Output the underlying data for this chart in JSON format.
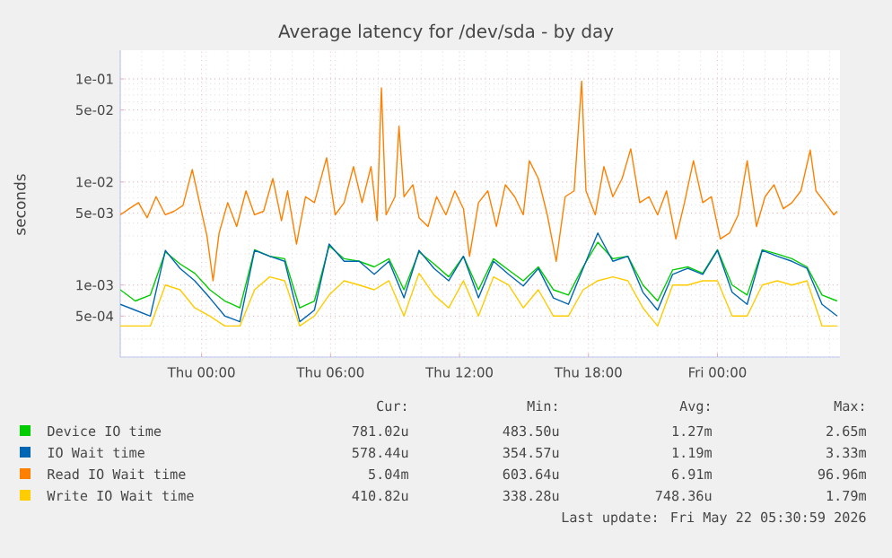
{
  "chart_data": {
    "type": "line",
    "title": "Average latency for /dev/sda - by day",
    "ylabel": "seconds",
    "log": "y",
    "grid": true,
    "legend": "bottom",
    "xlim": [
      "2026-05-20T20:13",
      "2026-05-22T05:42"
    ],
    "ylim": [
      0.0002,
      0.19
    ],
    "xticks": [
      {
        "value": "2026-05-21T00:00",
        "label": "Thu 00:00"
      },
      {
        "value": "2026-05-21T06:00",
        "label": "Thu 06:00"
      },
      {
        "value": "2026-05-21T12:00",
        "label": "Thu 12:00"
      },
      {
        "value": "2026-05-21T18:00",
        "label": "Thu 18:00"
      },
      {
        "value": "2026-05-22T00:00",
        "label": "Fri 00:00"
      }
    ],
    "yticks": [
      {
        "value": 0.0005,
        "label": "5e-04"
      },
      {
        "value": 0.001,
        "label": "1e-03"
      },
      {
        "value": 0.005,
        "label": "5e-03"
      },
      {
        "value": 0.01,
        "label": "1e-02"
      },
      {
        "value": 0.05,
        "label": "5e-02"
      },
      {
        "value": 0.1,
        "label": "1e-01"
      }
    ],
    "x": [
      "2026-05-20T20:13",
      "2026-05-20T20:55",
      "2026-05-20T21:37",
      "2026-05-20T22:19",
      "2026-05-20T23:00",
      "2026-05-20T23:41",
      "2026-05-21T00:23",
      "2026-05-21T01:05",
      "2026-05-21T01:47",
      "2026-05-21T02:28",
      "2026-05-21T03:10",
      "2026-05-21T03:52",
      "2026-05-21T04:34",
      "2026-05-21T05:15",
      "2026-05-21T05:56",
      "2026-05-21T06:38",
      "2026-05-21T07:20",
      "2026-05-21T08:02",
      "2026-05-21T08:43",
      "2026-05-21T09:25",
      "2026-05-21T10:07",
      "2026-05-21T10:49",
      "2026-05-21T11:30",
      "2026-05-21T12:11",
      "2026-05-21T12:53",
      "2026-05-21T13:35",
      "2026-05-21T14:17",
      "2026-05-21T14:58",
      "2026-05-21T15:40",
      "2026-05-21T16:22",
      "2026-05-21T17:04",
      "2026-05-21T17:45",
      "2026-05-21T18:26",
      "2026-05-21T19:08",
      "2026-05-21T19:50",
      "2026-05-21T20:32",
      "2026-05-21T21:13",
      "2026-05-21T21:55",
      "2026-05-21T22:37",
      "2026-05-21T23:19",
      "2026-05-22T00:00",
      "2026-05-22T00:41",
      "2026-05-22T01:23",
      "2026-05-22T02:05",
      "2026-05-22T02:47",
      "2026-05-22T03:28",
      "2026-05-22T04:10",
      "2026-05-22T04:52",
      "2026-05-22T05:34"
    ],
    "series": [
      {
        "name": "Device IO time",
        "color": "#00cc00",
        "values": [
          0.0009,
          0.0007,
          0.0008,
          0.0021,
          0.0016,
          0.0013,
          0.0009,
          0.0007,
          0.0006,
          0.0022,
          0.0019,
          0.0018,
          0.0006,
          0.0007,
          0.0024,
          0.0018,
          0.0017,
          0.0015,
          0.0018,
          0.0009,
          0.0021,
          0.0016,
          0.0012,
          0.0019,
          0.0009,
          0.0018,
          0.0014,
          0.0011,
          0.0015,
          0.0009,
          0.0008,
          0.0015,
          0.0026,
          0.0018,
          0.0019,
          0.001,
          0.0007,
          0.0014,
          0.0015,
          0.0013,
          0.0022,
          0.001,
          0.0008,
          0.0022,
          0.002,
          0.0018,
          0.0015,
          0.0008,
          0.0007
        ]
      },
      {
        "name": "IO Wait time",
        "color": "#0066b3",
        "values": [
          0.00065,
          0.00057,
          0.0005,
          0.00217,
          0.00145,
          0.0011,
          0.00075,
          0.0005,
          0.00044,
          0.00217,
          0.0019,
          0.0017,
          0.00044,
          0.00057,
          0.0025,
          0.0017,
          0.0017,
          0.00127,
          0.0017,
          0.00075,
          0.00217,
          0.00145,
          0.0011,
          0.0019,
          0.00075,
          0.0017,
          0.00127,
          0.00098,
          0.00145,
          0.00075,
          0.00065,
          0.00145,
          0.0032,
          0.0017,
          0.0019,
          0.00085,
          0.00057,
          0.00127,
          0.00145,
          0.00127,
          0.00217,
          0.00085,
          0.00065,
          0.00217,
          0.0019,
          0.0017,
          0.00145,
          0.00065,
          0.0005
        ]
      },
      {
        "name": "Read IO Wait time",
        "color": "#ff8000",
        "x": [
          "2026-05-20T20:13",
          "2026-05-20T20:38",
          "2026-05-20T21:04",
          "2026-05-20T21:28",
          "2026-05-20T21:53",
          "2026-05-20T22:19",
          "2026-05-20T22:43",
          "2026-05-20T23:08",
          "2026-05-20T23:34",
          "2026-05-20T23:58",
          "2026-05-21T00:15",
          "2026-05-21T00:32",
          "2026-05-21T00:49",
          "2026-05-21T01:13",
          "2026-05-21T01:38",
          "2026-05-21T02:04",
          "2026-05-21T02:28",
          "2026-05-21T02:53",
          "2026-05-21T03:19",
          "2026-05-21T03:43",
          "2026-05-21T04:00",
          "2026-05-21T04:25",
          "2026-05-21T04:50",
          "2026-05-21T05:15",
          "2026-05-21T05:49",
          "2026-05-21T06:13",
          "2026-05-21T06:38",
          "2026-05-21T07:04",
          "2026-05-21T07:28",
          "2026-05-21T07:53",
          "2026-05-21T08:10",
          "2026-05-21T08:22",
          "2026-05-21T08:35",
          "2026-05-21T09:00",
          "2026-05-21T09:11",
          "2026-05-21T09:25",
          "2026-05-21T09:50",
          "2026-05-21T10:07",
          "2026-05-21T10:32",
          "2026-05-21T10:56",
          "2026-05-21T11:22",
          "2026-05-21T11:47",
          "2026-05-21T12:11",
          "2026-05-21T12:28",
          "2026-05-21T12:53",
          "2026-05-21T13:19",
          "2026-05-21T13:43",
          "2026-05-21T14:08",
          "2026-05-21T14:34",
          "2026-05-21T14:58",
          "2026-05-21T15:15",
          "2026-05-21T15:40",
          "2026-05-21T16:05",
          "2026-05-21T16:30",
          "2026-05-21T16:55",
          "2026-05-21T17:20",
          "2026-05-21T17:41",
          "2026-05-21T17:53",
          "2026-05-21T18:19",
          "2026-05-21T18:43",
          "2026-05-21T19:08",
          "2026-05-21T19:34",
          "2026-05-21T19:58",
          "2026-05-21T20:23",
          "2026-05-21T20:49",
          "2026-05-21T21:13",
          "2026-05-21T21:38",
          "2026-05-21T22:04",
          "2026-05-21T22:28",
          "2026-05-21T22:53",
          "2026-05-21T23:19",
          "2026-05-21T23:43",
          "2026-05-22T00:08",
          "2026-05-22T00:34",
          "2026-05-22T00:58",
          "2026-05-22T01:23",
          "2026-05-22T01:49",
          "2026-05-22T02:13",
          "2026-05-22T02:38",
          "2026-05-22T03:04",
          "2026-05-22T03:28",
          "2026-05-22T03:53",
          "2026-05-22T04:19",
          "2026-05-22T04:35",
          "2026-05-22T05:00",
          "2026-05-22T05:25",
          "2026-05-22T05:34"
        ],
        "values": [
          0.0048,
          0.0055,
          0.0063,
          0.0045,
          0.0072,
          0.0048,
          0.0052,
          0.0059,
          0.0132,
          0.0055,
          0.003,
          0.0011,
          0.0032,
          0.0063,
          0.0037,
          0.0082,
          0.0048,
          0.0052,
          0.0108,
          0.0042,
          0.0082,
          0.0025,
          0.0072,
          0.0063,
          0.0172,
          0.0048,
          0.0063,
          0.0141,
          0.0063,
          0.0141,
          0.0042,
          0.082,
          0.0048,
          0.0072,
          0.0348,
          0.0072,
          0.0094,
          0.0045,
          0.0037,
          0.0072,
          0.0048,
          0.0082,
          0.0055,
          0.0019,
          0.0063,
          0.0082,
          0.0037,
          0.0094,
          0.0072,
          0.0048,
          0.0161,
          0.0108,
          0.0048,
          0.0017,
          0.0072,
          0.0082,
          0.095,
          0.0082,
          0.0048,
          0.0141,
          0.0072,
          0.0108,
          0.021,
          0.0063,
          0.0072,
          0.0048,
          0.0082,
          0.0028,
          0.0063,
          0.0161,
          0.0063,
          0.0072,
          0.0028,
          0.0032,
          0.0048,
          0.0161,
          0.0037,
          0.0072,
          0.0094,
          0.0055,
          0.0063,
          0.0082,
          0.0204,
          0.0082,
          0.0063,
          0.0048,
          0.0052
        ]
      },
      {
        "name": "Write IO Wait time",
        "color": "#ffcc00",
        "values": [
          0.0004,
          0.0004,
          0.0004,
          0.001,
          0.0009,
          0.0006,
          0.0005,
          0.0004,
          0.0004,
          0.0009,
          0.0012,
          0.0011,
          0.0004,
          0.0005,
          0.0008,
          0.0011,
          0.001,
          0.0009,
          0.0011,
          0.0005,
          0.0013,
          0.0008,
          0.0006,
          0.0011,
          0.0005,
          0.0012,
          0.001,
          0.0006,
          0.0009,
          0.0005,
          0.0005,
          0.0009,
          0.0011,
          0.0012,
          0.0011,
          0.0006,
          0.0004,
          0.001,
          0.001,
          0.0011,
          0.0011,
          0.0005,
          0.0005,
          0.001,
          0.0011,
          0.001,
          0.0011,
          0.0004,
          0.0004
        ]
      }
    ],
    "annotations": [
      "Cur:",
      "Min:",
      "Avg:",
      "Max:",
      "781.02u",
      "483.50u",
      "1.27m",
      "2.65m",
      "578.44u",
      "354.57u",
      "1.19m",
      "3.33m",
      "5.04m",
      "603.64u",
      "6.91m",
      "96.96m",
      "410.82u",
      "338.28u",
      "748.36u",
      "1.79m",
      "Last update: Fri May 22 05:30:59 2026"
    ]
  }
}
